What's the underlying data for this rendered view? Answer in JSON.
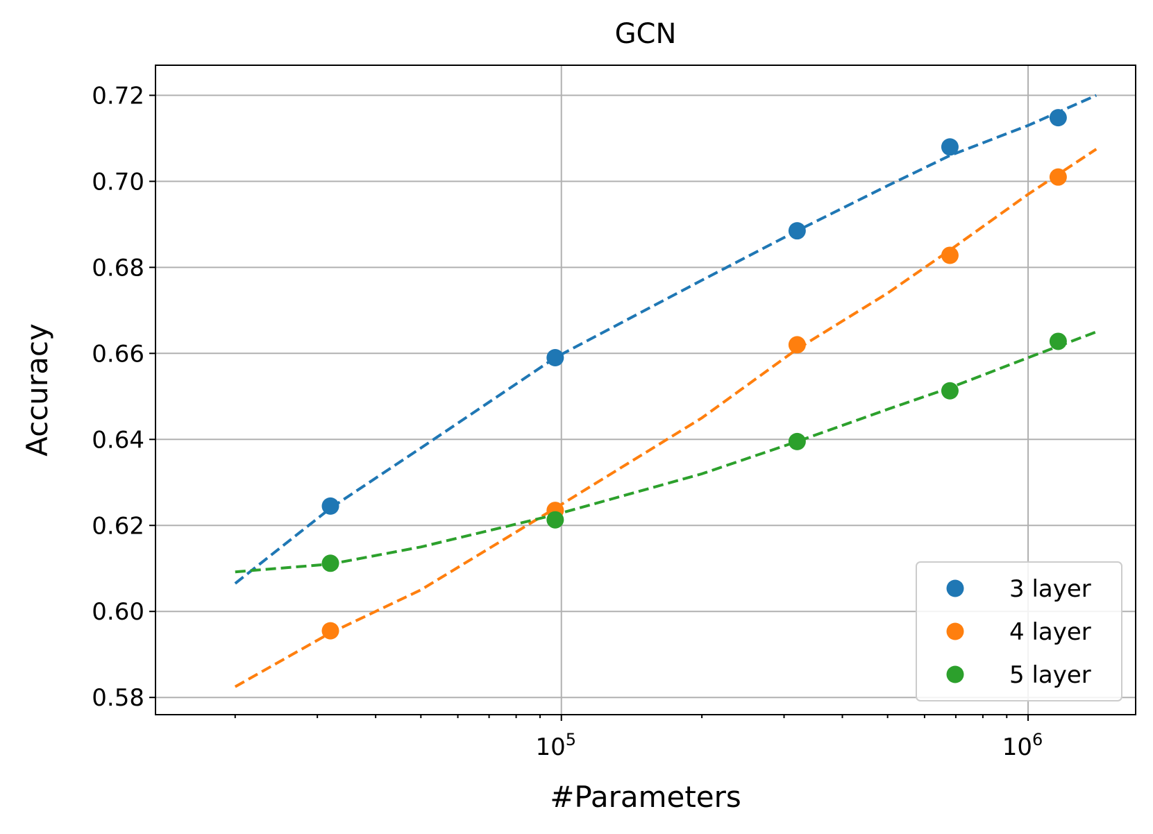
{
  "chart_data": {
    "type": "scatter",
    "title": "GCN",
    "xlabel": "#Parameters",
    "ylabel": "Accuracy",
    "xscale": "log",
    "xlim": [
      13500,
      1700000
    ],
    "ylim": [
      0.576,
      0.727
    ],
    "grid": true,
    "legend_position": "lower right",
    "xticks": [
      {
        "value": 100000,
        "base": "10",
        "exp": "5"
      },
      {
        "value": 1000000,
        "base": "10",
        "exp": "6"
      }
    ],
    "yticks": [
      {
        "value": 0.58,
        "label": "0.58"
      },
      {
        "value": 0.6,
        "label": "0.60"
      },
      {
        "value": 0.62,
        "label": "0.62"
      },
      {
        "value": 0.64,
        "label": "0.64"
      },
      {
        "value": 0.66,
        "label": "0.66"
      },
      {
        "value": 0.68,
        "label": "0.68"
      },
      {
        "value": 0.7,
        "label": "0.70"
      },
      {
        "value": 0.72,
        "label": "0.72"
      }
    ],
    "series": [
      {
        "name": "3 layer",
        "color": "#1f77b4",
        "points": [
          {
            "x": 32000,
            "y": 0.6245
          },
          {
            "x": 97000,
            "y": 0.659
          },
          {
            "x": 320000,
            "y": 0.6885
          },
          {
            "x": 680000,
            "y": 0.708
          },
          {
            "x": 1160000,
            "y": 0.7148
          }
        ],
        "fit": [
          {
            "x": 20000,
            "y": 0.6065
          },
          {
            "x": 32000,
            "y": 0.624
          },
          {
            "x": 50000,
            "y": 0.638
          },
          {
            "x": 97000,
            "y": 0.659
          },
          {
            "x": 200000,
            "y": 0.677
          },
          {
            "x": 320000,
            "y": 0.6885
          },
          {
            "x": 500000,
            "y": 0.699
          },
          {
            "x": 680000,
            "y": 0.706
          },
          {
            "x": 1000000,
            "y": 0.713
          },
          {
            "x": 1400000,
            "y": 0.72
          }
        ]
      },
      {
        "name": "4 layer",
        "color": "#ff7f0e",
        "points": [
          {
            "x": 32000,
            "y": 0.5955
          },
          {
            "x": 97000,
            "y": 0.6235
          },
          {
            "x": 320000,
            "y": 0.662
          },
          {
            "x": 680000,
            "y": 0.6828
          },
          {
            "x": 1160000,
            "y": 0.701
          }
        ],
        "fit": [
          {
            "x": 20000,
            "y": 0.5825
          },
          {
            "x": 32000,
            "y": 0.595
          },
          {
            "x": 50000,
            "y": 0.605
          },
          {
            "x": 97000,
            "y": 0.624
          },
          {
            "x": 200000,
            "y": 0.645
          },
          {
            "x": 320000,
            "y": 0.661
          },
          {
            "x": 500000,
            "y": 0.674
          },
          {
            "x": 680000,
            "y": 0.684
          },
          {
            "x": 1000000,
            "y": 0.697
          },
          {
            "x": 1400000,
            "y": 0.7075
          }
        ]
      },
      {
        "name": "5 layer",
        "color": "#2ca02c",
        "points": [
          {
            "x": 32000,
            "y": 0.6112
          },
          {
            "x": 97000,
            "y": 0.6213
          },
          {
            "x": 320000,
            "y": 0.6395
          },
          {
            "x": 680000,
            "y": 0.6513
          },
          {
            "x": 1160000,
            "y": 0.6628
          }
        ],
        "fit": [
          {
            "x": 20000,
            "y": 0.6092
          },
          {
            "x": 32000,
            "y": 0.611
          },
          {
            "x": 50000,
            "y": 0.615
          },
          {
            "x": 97000,
            "y": 0.6225
          },
          {
            "x": 200000,
            "y": 0.632
          },
          {
            "x": 320000,
            "y": 0.6395
          },
          {
            "x": 500000,
            "y": 0.647
          },
          {
            "x": 680000,
            "y": 0.652
          },
          {
            "x": 1000000,
            "y": 0.659
          },
          {
            "x": 1400000,
            "y": 0.665
          }
        ]
      }
    ]
  }
}
